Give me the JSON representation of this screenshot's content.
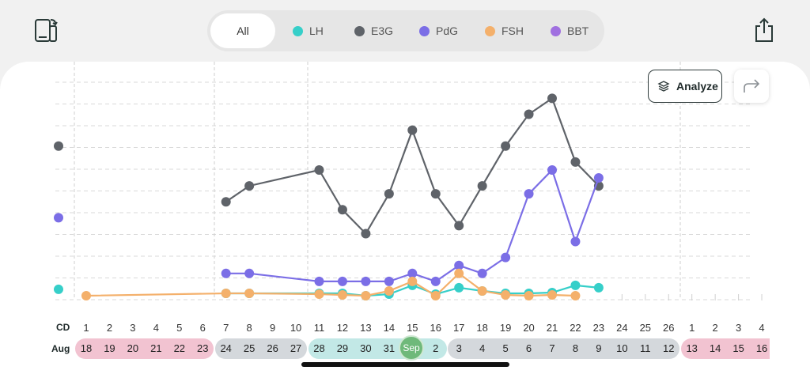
{
  "header": {
    "filters": [
      {
        "label": "All",
        "active": true,
        "color": ""
      },
      {
        "label": "LH",
        "active": false,
        "color": "#36cfc9"
      },
      {
        "label": "E3G",
        "active": false,
        "color": "#5f6369"
      },
      {
        "label": "PdG",
        "active": false,
        "color": "#7b6ee6"
      },
      {
        "label": "FSH",
        "active": false,
        "color": "#f4b06b"
      },
      {
        "label": "BBT",
        "active": false,
        "color": "#a070e0"
      }
    ],
    "left_icon": "phone-rotate-icon",
    "right_icon": "share-upload-icon"
  },
  "toolbar": {
    "analyze_label": "Analyze",
    "analyze_icon": "layers-icon",
    "share_icon": "share-forward-icon"
  },
  "axis": {
    "cd_label": "CD",
    "month_label": "Aug",
    "cycle_days": [
      "1",
      "2",
      "3",
      "4",
      "5",
      "6",
      "7",
      "8",
      "9",
      "10",
      "11",
      "12",
      "13",
      "14",
      "15",
      "16",
      "17",
      "18",
      "19",
      "20",
      "21",
      "22",
      "23",
      "24",
      "25",
      "26",
      "1",
      "2",
      "3",
      "4"
    ],
    "dates": [
      "18",
      "19",
      "20",
      "21",
      "22",
      "23",
      "24",
      "25",
      "26",
      "27",
      "28",
      "29",
      "30",
      "31",
      "Sep",
      "2",
      "3",
      "4",
      "5",
      "6",
      "7",
      "8",
      "9",
      "10",
      "11",
      "12",
      "13",
      "14",
      "15",
      "16"
    ],
    "phases": [
      {
        "name": "period",
        "start": 0,
        "end": 5,
        "color": "#f2c3d1"
      },
      {
        "name": "follicular",
        "start": 6,
        "end": 9,
        "color": "#d4d8dc"
      },
      {
        "name": "fertile",
        "start": 10,
        "end": 15,
        "color": "#c2e8e6"
      },
      {
        "name": "luteal",
        "start": 16,
        "end": 25,
        "color": "#d4d8dc"
      },
      {
        "name": "period",
        "start": 26,
        "end": 29,
        "color": "#f2c3d1"
      }
    ],
    "today_index": 14
  },
  "chart_data": {
    "type": "line",
    "x": [
      "1",
      "2",
      "3",
      "4",
      "5",
      "6",
      "7",
      "8",
      "9",
      "10",
      "11",
      "12",
      "13",
      "14",
      "15",
      "16",
      "17",
      "18",
      "19",
      "20",
      "21",
      "22",
      "23"
    ],
    "ylim": [
      0,
      10
    ],
    "series": [
      {
        "name": "E3G",
        "color": "#5f6369",
        "values": [
          null,
          null,
          null,
          null,
          null,
          null,
          1.2,
          1.4,
          null,
          null,
          1.6,
          1.1,
          0.8,
          1.3,
          2.1,
          1.3,
          0.9,
          1.4,
          1.9,
          2.3,
          2.5,
          1.7,
          1.4
        ]
      },
      {
        "name": "PdG",
        "color": "#7b6ee6",
        "values": [
          null,
          null,
          null,
          null,
          null,
          null,
          0.3,
          0.3,
          null,
          null,
          0.2,
          0.2,
          0.2,
          0.2,
          0.3,
          0.2,
          0.4,
          0.3,
          0.5,
          1.3,
          1.6,
          0.7,
          1.5
        ]
      },
      {
        "name": "LH",
        "color": "#36cfc9",
        "values": [
          null,
          null,
          null,
          null,
          null,
          null,
          0.05,
          0.05,
          null,
          null,
          0.05,
          0.05,
          0.02,
          0.04,
          0.15,
          0.04,
          0.12,
          0.08,
          0.05,
          0.05,
          0.06,
          0.15,
          0.12
        ]
      },
      {
        "name": "FSH",
        "color": "#f4b06b",
        "values": [
          0.02,
          null,
          null,
          null,
          null,
          null,
          0.05,
          0.05,
          null,
          null,
          0.04,
          0.03,
          0.02,
          0.08,
          0.2,
          0.02,
          0.3,
          0.08,
          0.03,
          0.02,
          0.03,
          0.02,
          null
        ]
      }
    ],
    "off_axis_markers": [
      {
        "series": "E3G",
        "value": 1.9
      },
      {
        "series": "PdG",
        "value": 1.0
      },
      {
        "series": "LH",
        "value": 0.1
      }
    ],
    "grid": true,
    "vertical_markers_at": [
      "1",
      "7",
      "11",
      "26"
    ]
  }
}
